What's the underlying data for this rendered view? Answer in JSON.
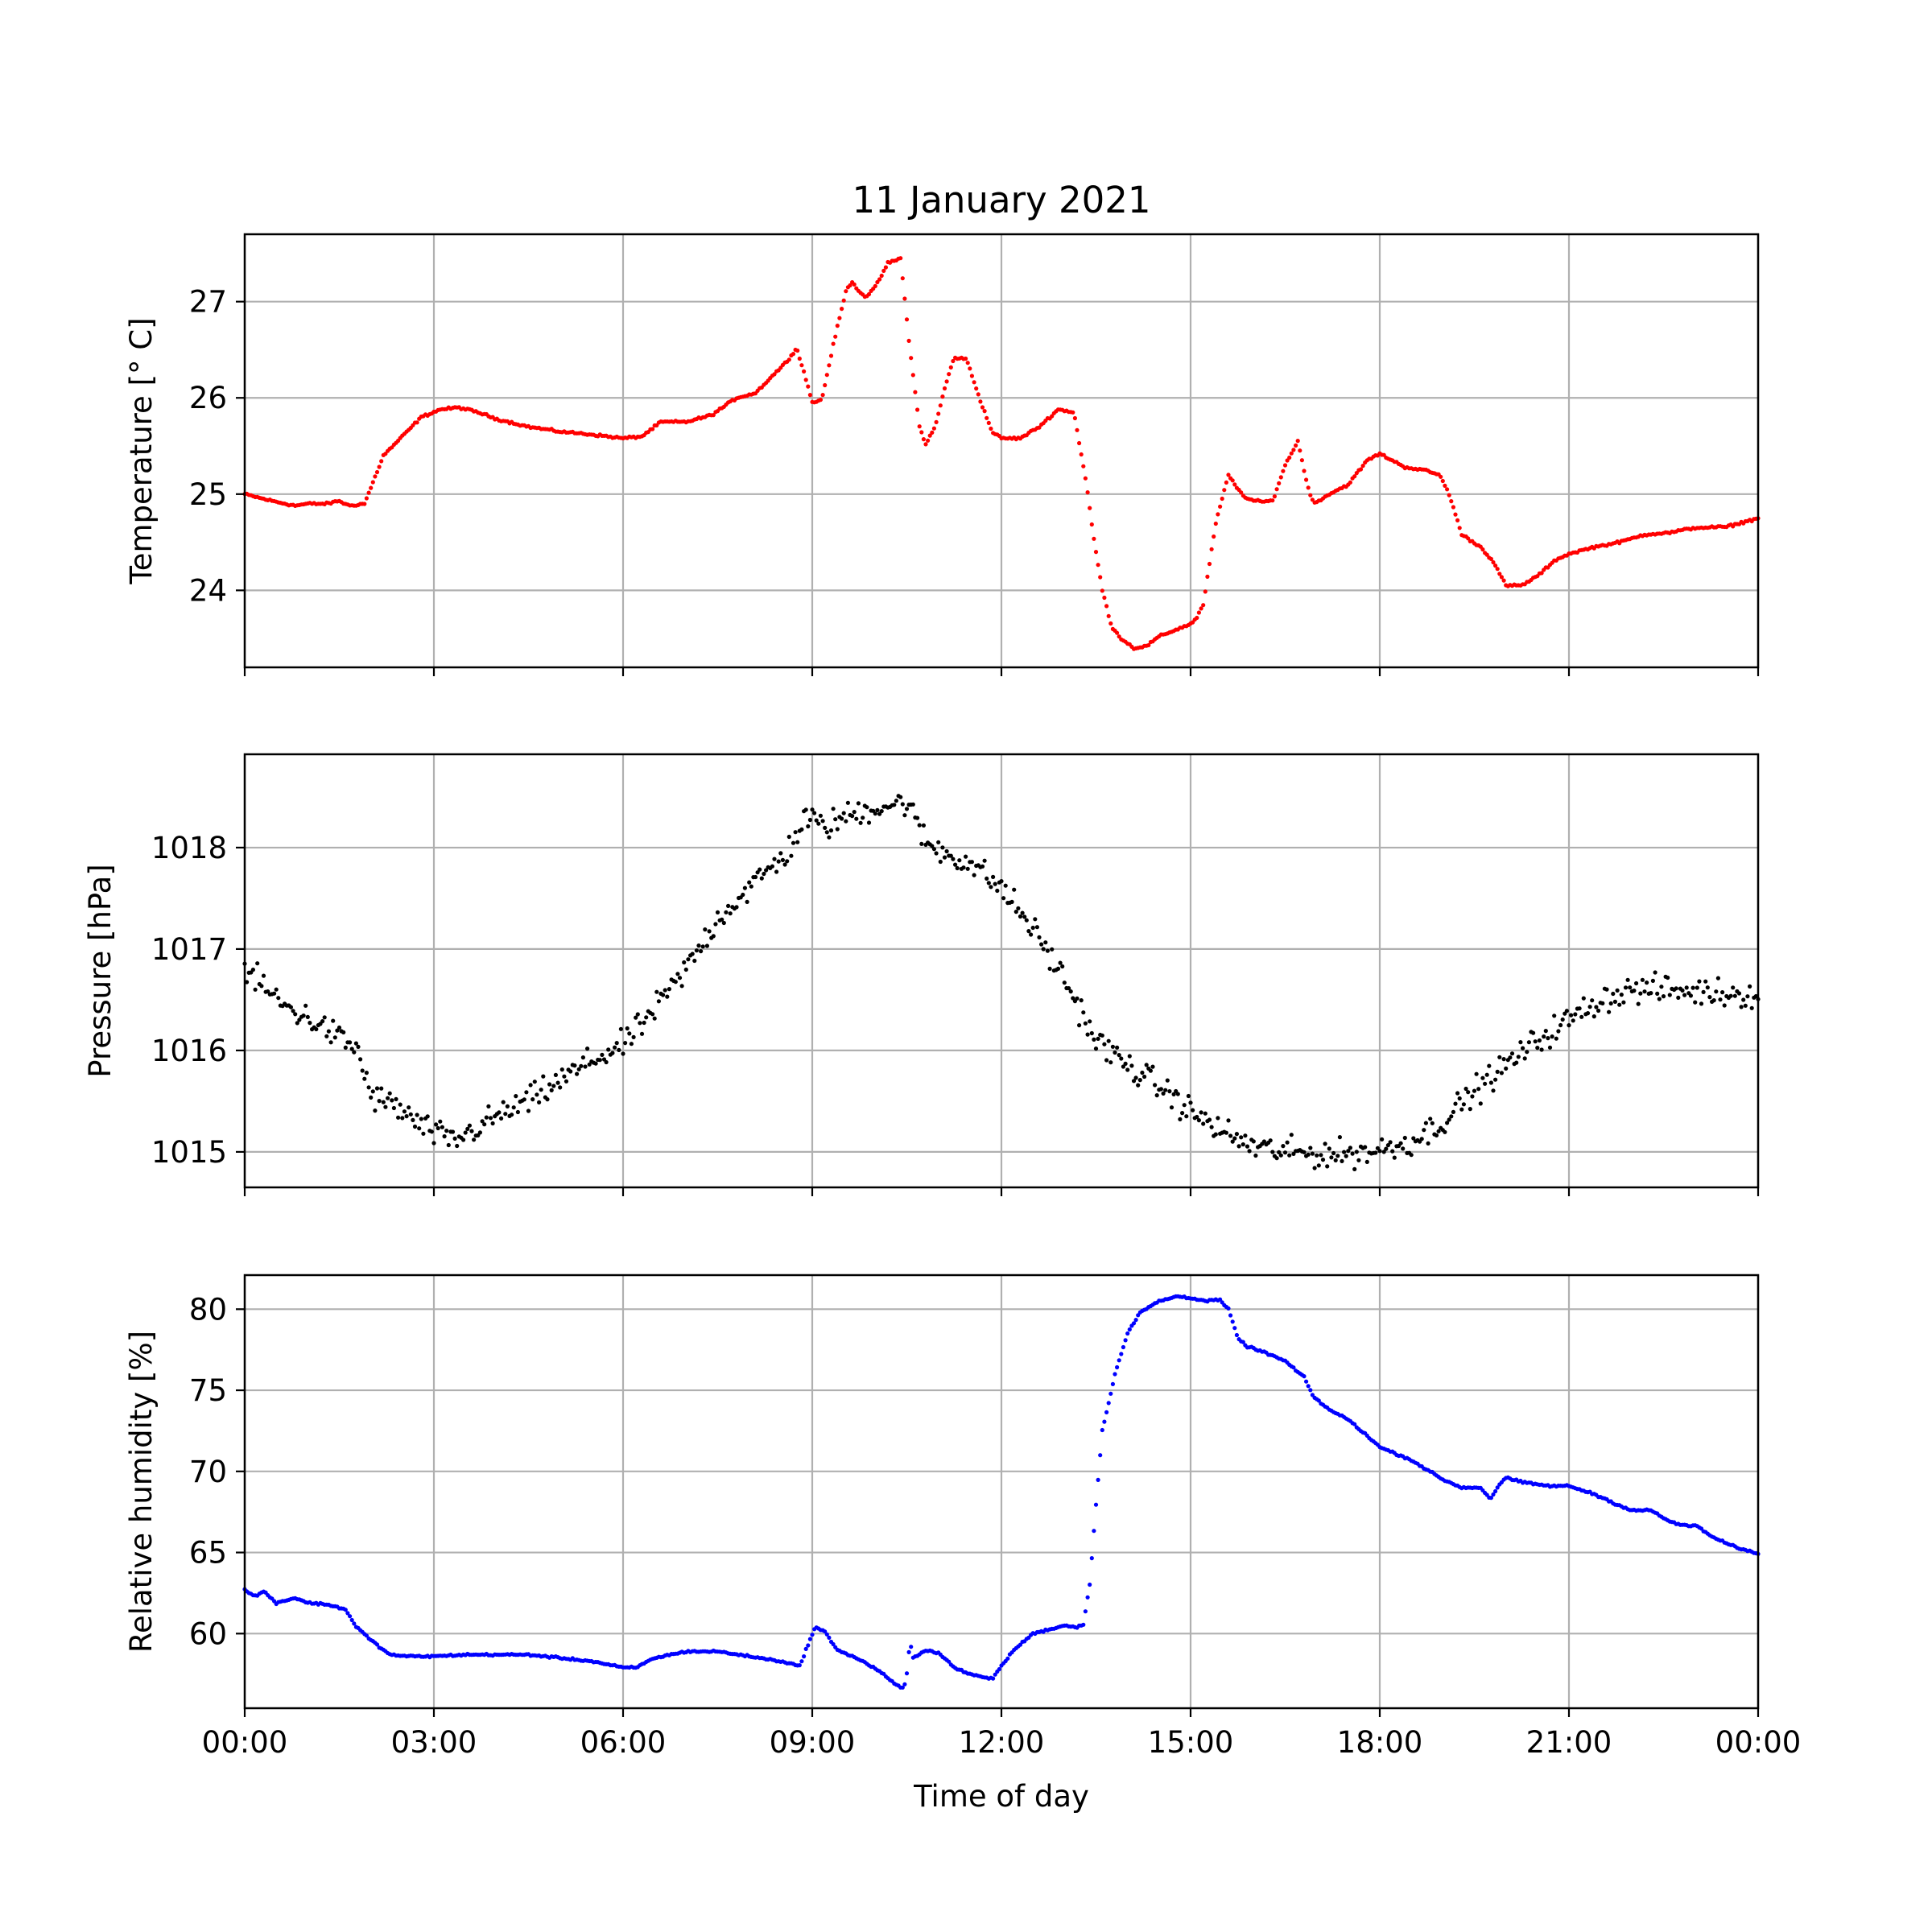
{
  "chart_data": {
    "title": "11 January 2021",
    "type": "scatter",
    "xlabel": "Time of day",
    "x_tick_labels": [
      "00:00",
      "03:00",
      "06:00",
      "09:00",
      "12:00",
      "15:00",
      "18:00",
      "21:00",
      "00:00"
    ],
    "xlim": [
      0,
      24
    ],
    "grid": true,
    "panels": [
      {
        "ylabel": "Temperature [° C]",
        "color": "#ff0000",
        "ylim": [
          23.2,
          27.7
        ],
        "yticks": [
          24,
          25,
          26,
          27
        ],
        "point_interval_minutes": 2,
        "noise": 0.01,
        "x": [
          0,
          0.3,
          0.5,
          0.8,
          1.0,
          1.3,
          1.5,
          1.65,
          1.9,
          2.2,
          2.5,
          2.8,
          3.1,
          3.4,
          3.7,
          4.0,
          4.5,
          5.0,
          5.5,
          6.0,
          6.3,
          6.6,
          7.0,
          7.4,
          7.8,
          8.1,
          8.4,
          8.6,
          8.75,
          8.9,
          9.0,
          9.15,
          9.35,
          9.55,
          9.65,
          9.75,
          9.85,
          10.0,
          10.2,
          10.4,
          10.55,
          10.7,
          10.8,
          10.95,
          11.1,
          11.25,
          11.45,
          11.65,
          11.85,
          12.0,
          12.3,
          12.6,
          12.9,
          13.15,
          13.35,
          13.45,
          13.6,
          13.75,
          13.9,
          14.1,
          14.3,
          14.5,
          14.8,
          15.0,
          15.1,
          15.2,
          15.4,
          15.6,
          15.75,
          15.9,
          16.1,
          16.3,
          16.5,
          16.7,
          16.85,
          16.95,
          17.2,
          17.5,
          17.8,
          18.0,
          18.2,
          18.4,
          18.7,
          18.95,
          19.1,
          19.3,
          19.6,
          19.8,
          20.0,
          20.25,
          20.5,
          20.8,
          21.0,
          21.4,
          21.8,
          22.2,
          22.6,
          23.0,
          23.5,
          24.0
        ],
        "y": [
          25.0,
          24.95,
          24.92,
          24.88,
          24.9,
          24.9,
          24.93,
          24.88,
          24.9,
          25.4,
          25.6,
          25.8,
          25.88,
          25.9,
          25.85,
          25.78,
          25.7,
          25.65,
          25.62,
          25.58,
          25.6,
          25.75,
          25.75,
          25.82,
          26.0,
          26.05,
          26.25,
          26.38,
          26.52,
          26.2,
          25.95,
          25.98,
          26.6,
          27.15,
          27.2,
          27.1,
          27.05,
          27.15,
          27.4,
          27.45,
          26.5,
          25.7,
          25.52,
          25.7,
          26.1,
          26.42,
          26.4,
          26.0,
          25.65,
          25.58,
          25.58,
          25.7,
          25.88,
          25.85,
          25.1,
          24.6,
          24.0,
          23.62,
          23.5,
          23.4,
          23.42,
          23.52,
          23.6,
          23.65,
          23.72,
          23.85,
          24.7,
          25.2,
          25.05,
          24.95,
          24.92,
          24.93,
          25.3,
          25.55,
          25.1,
          24.9,
          25.0,
          25.1,
          25.35,
          25.42,
          25.35,
          25.28,
          25.25,
          25.2,
          25.0,
          24.58,
          24.45,
          24.3,
          24.05,
          24.05,
          24.15,
          24.32,
          24.38,
          24.45,
          24.5,
          24.58,
          24.6,
          24.65,
          24.66,
          24.75
        ]
      },
      {
        "ylabel": "Pressure [hPa]",
        "color": "#000000",
        "ylim": [
          1014.65,
          1018.92
        ],
        "yticks": [
          1015,
          1016,
          1017,
          1018
        ],
        "point_interval_minutes": 2,
        "noise": 0.12,
        "x": [
          0,
          0.6,
          1.2,
          1.8,
          2.0,
          2.4,
          2.8,
          3.3,
          4.0,
          4.5,
          5.0,
          5.5,
          6.0,
          6.5,
          7.0,
          7.5,
          8.0,
          8.6,
          8.9,
          9.2,
          9.5,
          10.0,
          10.5,
          10.8,
          11.1,
          11.5,
          12.0,
          12.5,
          13.0,
          13.5,
          14.0,
          14.5,
          15.0,
          15.5,
          16.0,
          16.5,
          17.0,
          17.5,
          18.0,
          18.5,
          19.0,
          19.5,
          20.0,
          20.5,
          21.0,
          21.5,
          22.0,
          22.5,
          23.0,
          23.5,
          24.0
        ],
        "y": [
          1016.8,
          1016.45,
          1016.25,
          1016.0,
          1015.55,
          1015.45,
          1015.25,
          1015.1,
          1015.35,
          1015.5,
          1015.7,
          1015.9,
          1016.05,
          1016.4,
          1016.8,
          1017.3,
          1017.6,
          1017.95,
          1018.3,
          1018.2,
          1018.3,
          1018.4,
          1018.45,
          1018.05,
          1017.95,
          1017.85,
          1017.6,
          1017.2,
          1016.7,
          1016.1,
          1015.85,
          1015.65,
          1015.4,
          1015.2,
          1015.05,
          1015.0,
          1014.98,
          1014.98,
          1015.02,
          1015.1,
          1015.3,
          1015.6,
          1015.85,
          1016.1,
          1016.3,
          1016.5,
          1016.6,
          1016.6,
          1016.58,
          1016.57,
          1016.55
        ]
      },
      {
        "ylabel": "Relative humidity [%]",
        "color": "#0000ff",
        "ylim": [
          55.4,
          82.1
        ],
        "yticks": [
          60,
          65,
          70,
          75,
          80
        ],
        "point_interval_minutes": 2,
        "noise": 0.05,
        "x": [
          0,
          0.15,
          0.3,
          0.5,
          0.8,
          1.0,
          1.3,
          1.6,
          1.75,
          2.0,
          2.3,
          2.6,
          3.0,
          3.5,
          4.0,
          4.5,
          5.0,
          5.5,
          6.0,
          6.2,
          6.5,
          7.0,
          7.5,
          8.0,
          8.5,
          8.8,
          8.95,
          9.05,
          9.2,
          9.4,
          9.8,
          10.1,
          10.3,
          10.45,
          10.5,
          10.55,
          10.6,
          10.8,
          11.0,
          11.3,
          11.5,
          11.85,
          12.0,
          12.2,
          12.5,
          13.0,
          13.2,
          13.3,
          13.4,
          13.5,
          13.6,
          13.8,
          14.0,
          14.2,
          14.5,
          14.8,
          15.0,
          15.25,
          15.45,
          15.6,
          15.75,
          15.9,
          16.2,
          16.5,
          16.8,
          16.95,
          17.2,
          17.5,
          17.8,
          18.0,
          18.5,
          19.0,
          19.3,
          19.6,
          19.75,
          19.9,
          20.0,
          20.3,
          20.7,
          21.0,
          21.4,
          21.8,
          22.0,
          22.3,
          22.6,
          22.9,
          23.0,
          23.3,
          23.6,
          24.0
        ],
        "y": [
          62.7,
          62.3,
          62.6,
          61.9,
          62.2,
          61.9,
          61.8,
          61.5,
          60.5,
          59.6,
          58.7,
          58.6,
          58.6,
          58.7,
          58.7,
          58.7,
          58.5,
          58.3,
          57.9,
          57.9,
          58.5,
          58.9,
          58.9,
          58.6,
          58.3,
          58.0,
          59.5,
          60.4,
          60.1,
          59.0,
          58.3,
          57.6,
          56.9,
          56.6,
          57.5,
          59.5,
          58.5,
          59.0,
          58.8,
          57.8,
          57.5,
          57.2,
          58.0,
          59.0,
          60.0,
          60.5,
          60.4,
          60.6,
          63.0,
          68.0,
          72.5,
          76.0,
          78.5,
          79.8,
          80.5,
          80.8,
          80.7,
          80.5,
          80.6,
          80.0,
          78.2,
          77.7,
          77.3,
          76.8,
          75.8,
          74.6,
          73.8,
          73.2,
          72.2,
          71.5,
          70.7,
          69.5,
          69.0,
          69.0,
          68.3,
          69.2,
          69.6,
          69.3,
          69.1,
          69.1,
          68.6,
          67.9,
          67.6,
          67.6,
          66.9,
          66.6,
          66.7,
          65.9,
          65.4,
          64.9
        ]
      }
    ]
  }
}
